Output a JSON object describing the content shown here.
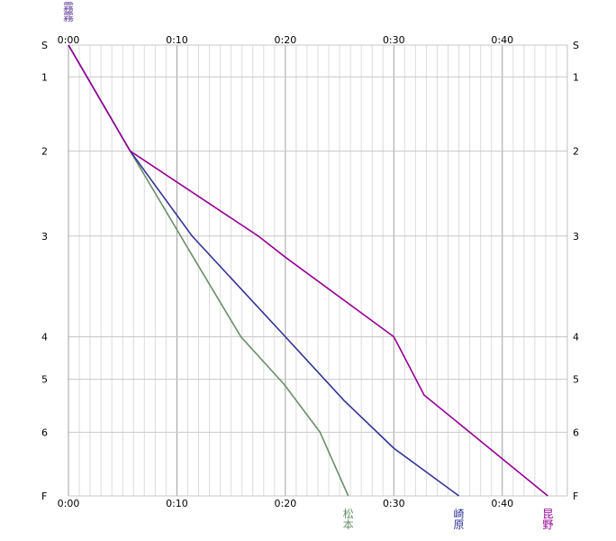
{
  "chart_data": {
    "type": "line",
    "title": "",
    "xlabel": "",
    "ylabel": "",
    "x_unit": "minutes",
    "xlim": [
      0,
      46
    ],
    "x_ticks": [
      0,
      10,
      20,
      30,
      40
    ],
    "x_tick_labels": [
      "0:00",
      "0:10",
      "0:20",
      "0:30",
      "0:40"
    ],
    "minor_grid_minutes": 1,
    "grid": true,
    "stations": [
      {
        "label": "S",
        "pos": 0
      },
      {
        "label": "1",
        "pos": 0.6
      },
      {
        "label": "2",
        "pos": 2.0
      },
      {
        "label": "3",
        "pos": 3.6
      },
      {
        "label": "4",
        "pos": 5.5
      },
      {
        "label": "5",
        "pos": 6.3
      },
      {
        "label": "6",
        "pos": 7.3
      },
      {
        "label": "F",
        "pos": 8.5
      }
    ],
    "origin_label": "霧霧",
    "series": [
      {
        "name": "松本",
        "color": "#6a8e6a",
        "points": [
          [
            0,
            0
          ],
          [
            5.7,
            2.0
          ],
          [
            11.8,
            4.1
          ],
          [
            15.9,
            5.5
          ],
          [
            19.9,
            6.4
          ],
          [
            23.2,
            7.3
          ],
          [
            25.8,
            8.5
          ]
        ]
      },
      {
        "name": "崎原",
        "color": "#323296",
        "points": [
          [
            0,
            0
          ],
          [
            5.7,
            2.0
          ],
          [
            11.4,
            3.6
          ],
          [
            20.0,
            5.5
          ],
          [
            25.4,
            6.7
          ],
          [
            30.0,
            7.6
          ],
          [
            36.0,
            8.5
          ]
        ]
      },
      {
        "name": "昆野",
        "color": "#960096",
        "points": [
          [
            0,
            0
          ],
          [
            5.7,
            2.0
          ],
          [
            17.5,
            3.6
          ],
          [
            20.0,
            4.0
          ],
          [
            30.0,
            5.5
          ],
          [
            32.8,
            6.6
          ],
          [
            37.0,
            7.3
          ],
          [
            44.2,
            8.5
          ]
        ]
      }
    ]
  }
}
